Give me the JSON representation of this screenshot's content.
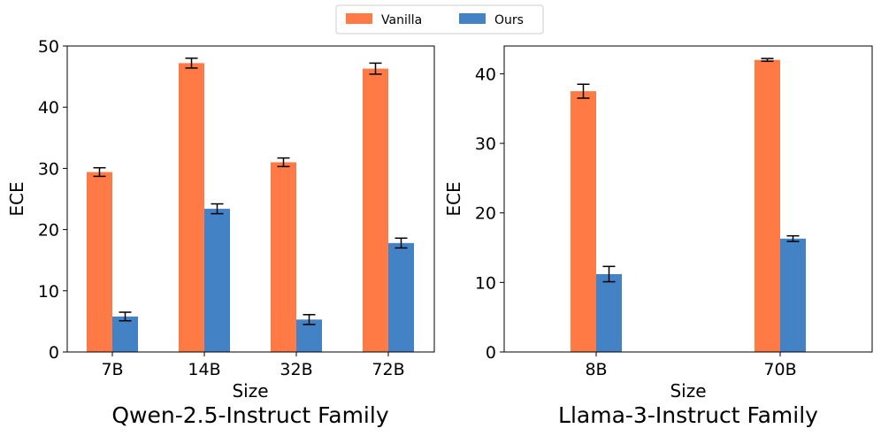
{
  "legend": {
    "items": [
      {
        "label": "Vanilla",
        "color": "#FF7A45"
      },
      {
        "label": "Ours",
        "color": "#4482C6"
      }
    ]
  },
  "chart_data": [
    {
      "type": "bar",
      "title": "Qwen-2.5-Instruct Family",
      "xlabel": "Size",
      "ylabel": "ECE",
      "categories": [
        "7B",
        "14B",
        "32B",
        "72B"
      ],
      "ylim": [
        0,
        50
      ],
      "yticks": [
        0,
        10,
        20,
        30,
        40,
        50
      ],
      "series": [
        {
          "name": "Vanilla",
          "color": "#FF7A45",
          "values": [
            29.4,
            47.2,
            31.0,
            46.3
          ],
          "errors": [
            0.7,
            0.8,
            0.7,
            0.9
          ]
        },
        {
          "name": "Ours",
          "color": "#4482C6",
          "values": [
            5.8,
            23.4,
            5.3,
            17.8
          ],
          "errors": [
            0.7,
            0.8,
            0.8,
            0.8
          ]
        }
      ]
    },
    {
      "type": "bar",
      "title": "Llama-3-Instruct Family",
      "xlabel": "Size",
      "ylabel": "ECE",
      "categories": [
        "8B",
        "70B"
      ],
      "ylim": [
        0,
        44
      ],
      "yticks": [
        0,
        10,
        20,
        30,
        40
      ],
      "series": [
        {
          "name": "Vanilla",
          "color": "#FF7A45",
          "values": [
            37.5,
            42.0
          ],
          "errors": [
            1.0,
            0.2
          ]
        },
        {
          "name": "Ours",
          "color": "#4482C6",
          "values": [
            11.2,
            16.3
          ],
          "errors": [
            1.1,
            0.4
          ]
        }
      ]
    }
  ]
}
